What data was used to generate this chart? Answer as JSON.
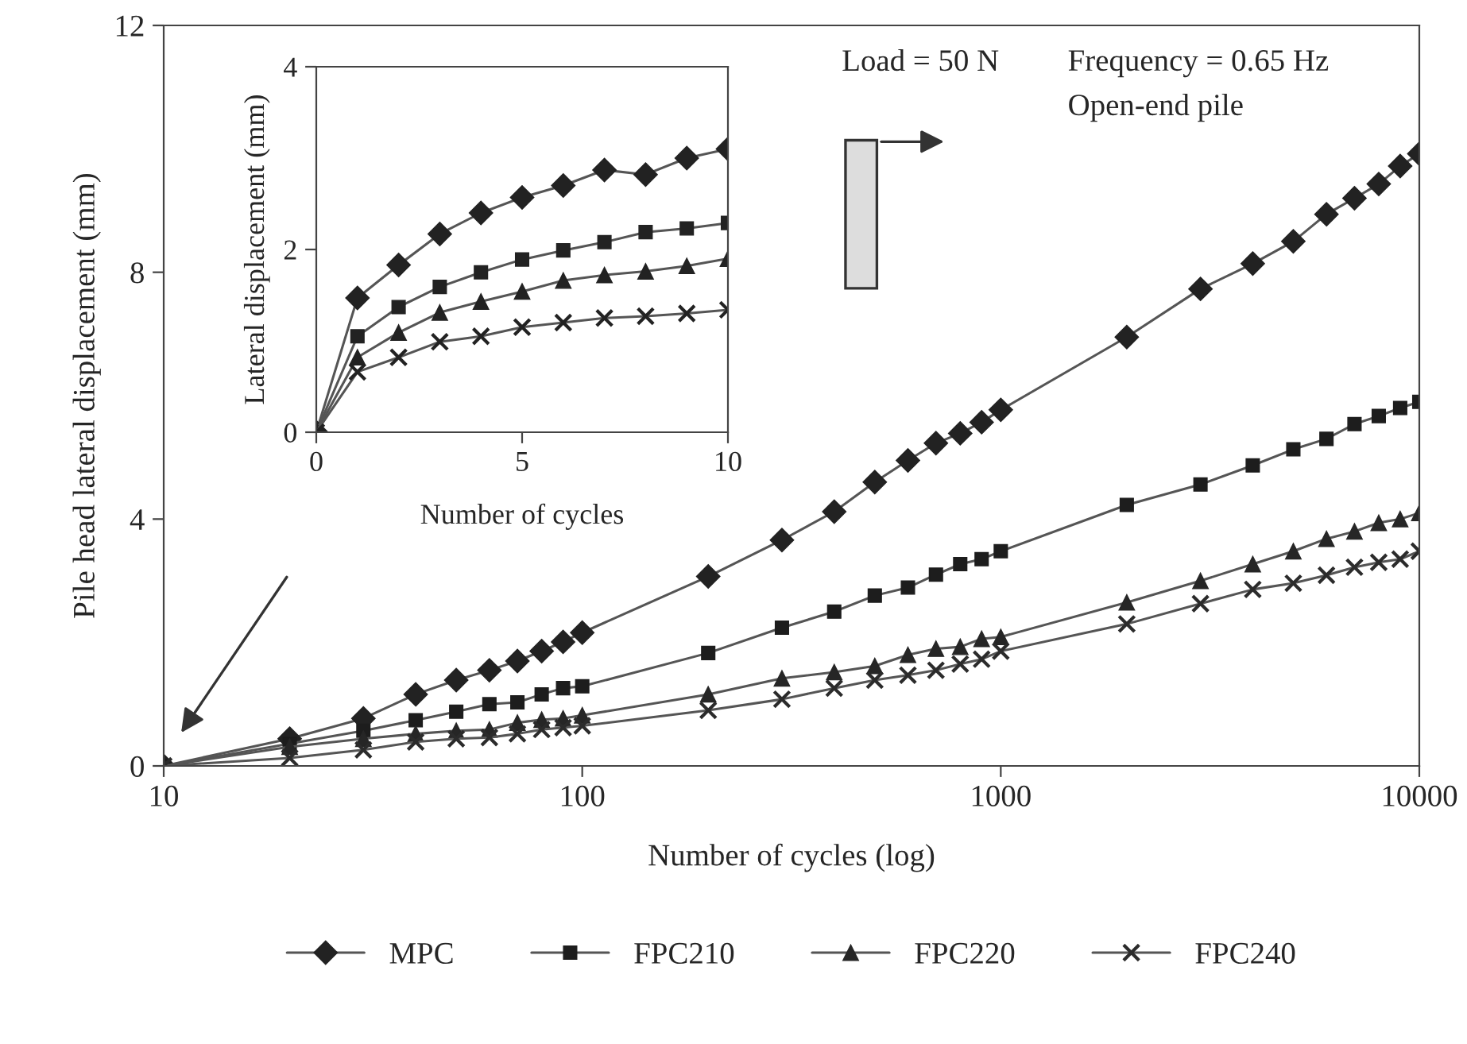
{
  "chart_data": [
    {
      "type": "line",
      "xlabel": "Number of cycles (log)",
      "ylabel": "Pile head lateral displacement (mm)",
      "log": "x",
      "x": [
        10,
        20,
        30,
        40,
        50,
        60,
        70,
        80,
        90,
        100,
        200,
        300,
        400,
        500,
        600,
        700,
        800,
        900,
        1000,
        2000,
        3000,
        4000,
        5000,
        6000,
        7000,
        8000,
        9000,
        10000
      ],
      "xlim": [
        10,
        10000
      ],
      "xticks": [
        10,
        100,
        1000,
        10000
      ],
      "ylim": [
        0,
        12
      ],
      "yticks": [
        0,
        4,
        8,
        12
      ],
      "grid": false,
      "legend": "bottom",
      "annotations": [
        "Load = 50 N",
        "Frequency = 0.65 Hz",
        "Open-end pile"
      ],
      "series": [
        {
          "name": "MPC",
          "color": "#222222",
          "marker": "diamond",
          "values": [
            0,
            0.44,
            0.77,
            1.16,
            1.39,
            1.55,
            1.7,
            1.86,
            2.01,
            2.16,
            3.07,
            3.66,
            4.12,
            4.6,
            4.95,
            5.23,
            5.39,
            5.57,
            5.77,
            6.95,
            7.73,
            8.14,
            8.5,
            8.94,
            9.2,
            9.43,
            9.72,
            9.92
          ]
        },
        {
          "name": "FPC210",
          "color": "#1d1d1d",
          "marker": "square",
          "values": [
            0,
            0.36,
            0.57,
            0.74,
            0.88,
            1.0,
            1.03,
            1.16,
            1.26,
            1.29,
            1.83,
            2.24,
            2.5,
            2.76,
            2.89,
            3.1,
            3.27,
            3.35,
            3.48,
            4.23,
            4.56,
            4.87,
            5.13,
            5.3,
            5.54,
            5.67,
            5.8,
            5.9
          ]
        },
        {
          "name": "FPC220",
          "color": "#262626",
          "marker": "triangle",
          "values": [
            0,
            0.31,
            0.44,
            0.52,
            0.57,
            0.59,
            0.7,
            0.75,
            0.77,
            0.82,
            1.16,
            1.42,
            1.52,
            1.62,
            1.8,
            1.9,
            1.93,
            2.06,
            2.09,
            2.65,
            3.0,
            3.27,
            3.48,
            3.68,
            3.8,
            3.94,
            4.0,
            4.1
          ]
        },
        {
          "name": "FPC240",
          "color": "#2b2b2b",
          "marker": "cross",
          "values": [
            0,
            0.13,
            0.26,
            0.39,
            0.44,
            0.46,
            0.52,
            0.59,
            0.62,
            0.65,
            0.9,
            1.08,
            1.26,
            1.39,
            1.47,
            1.55,
            1.65,
            1.73,
            1.86,
            2.3,
            2.63,
            2.86,
            2.96,
            3.09,
            3.22,
            3.3,
            3.35,
            3.48
          ]
        }
      ]
    },
    {
      "type": "line",
      "xlabel": "Number of cycles",
      "ylabel": "Lateral displacement (mm)",
      "x": [
        0,
        1,
        2,
        3,
        4,
        5,
        6,
        7,
        8,
        9,
        10
      ],
      "xlim": [
        0,
        10
      ],
      "xticks": [
        0,
        5,
        10
      ],
      "ylim": [
        0,
        4
      ],
      "yticks": [
        0,
        2,
        4
      ],
      "grid": false,
      "series": [
        {
          "color": "#222222",
          "marker": "diamond",
          "values": [
            0,
            1.47,
            1.83,
            2.17,
            2.4,
            2.57,
            2.7,
            2.87,
            2.82,
            3.0,
            3.1
          ]
        },
        {
          "color": "#222222",
          "marker": "square",
          "values": [
            0,
            1.05,
            1.37,
            1.59,
            1.75,
            1.89,
            1.99,
            2.08,
            2.19,
            2.23,
            2.29
          ]
        },
        {
          "color": "#222222",
          "marker": "triangle",
          "values": [
            0,
            0.82,
            1.09,
            1.31,
            1.43,
            1.54,
            1.66,
            1.72,
            1.76,
            1.82,
            1.9
          ]
        },
        {
          "color": "#222222",
          "marker": "cross",
          "values": [
            0,
            0.66,
            0.82,
            0.99,
            1.05,
            1.15,
            1.2,
            1.25,
            1.27,
            1.3,
            1.34
          ]
        }
      ]
    }
  ]
}
